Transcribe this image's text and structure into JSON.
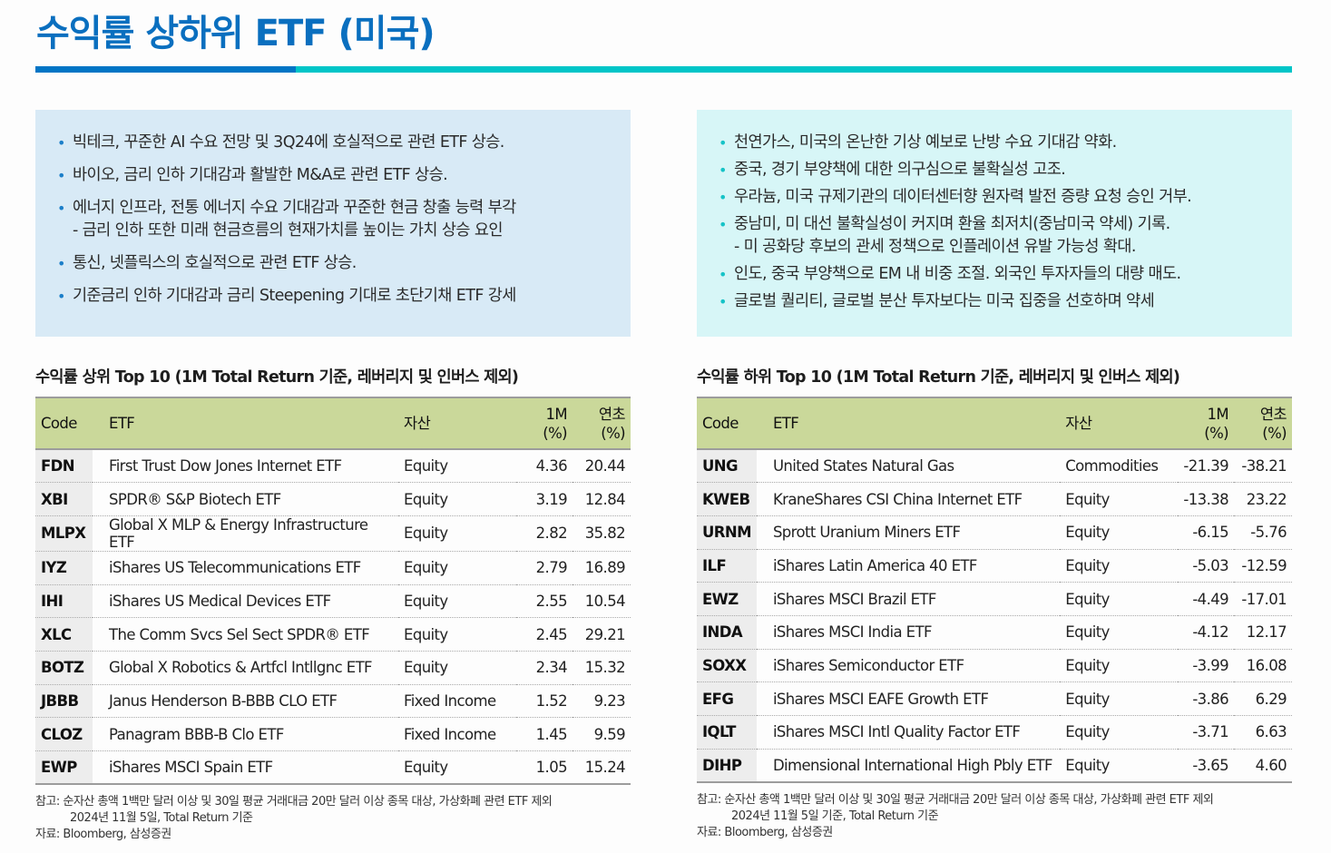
{
  "page": {
    "title": "수익률 상하위 ETF (미국)",
    "colors": {
      "title": "#0a6fbf",
      "rule_blue": "#0075c5",
      "rule_teal": "#00c5c8",
      "left_box": "#d8eaf6",
      "right_box": "#d7f6f7",
      "table_header": "#cad89a",
      "code_cell": "#ededed"
    }
  },
  "left": {
    "summary": [
      {
        "text": "빅테크, 꾸준한 AI 수요 전망 및 3Q24에 호실적으로 관련 ETF 상승."
      },
      {
        "text": "바이오, 금리 인하 기대감과 활발한 M&A로 관련 ETF 상승."
      },
      {
        "text": "에너지 인프라, 전통 에너지 수요 기대감과 꾸준한 현금 창출 능력 부각",
        "sub": "- 금리 인하 또한 미래 현금흐름의 현재가치를 높이는 가치 상승 요인"
      },
      {
        "text": "통신, 넷플릭스의 호실적으로 관련 ETF 상승."
      },
      {
        "text": "기준금리 인하 기대감과 금리 Steepening 기대로 초단기채 ETF 강세"
      }
    ],
    "table_title": "수익률 상위 Top 10 (1M Total Return 기준, 레버리지 및 인버스 제외)",
    "headers": {
      "code": "Code",
      "etf": "ETF",
      "asset": "자산",
      "m1_a": "1M",
      "m1_b": "(%)",
      "ytd_a": "연초",
      "ytd_b": "(%)"
    },
    "rows": [
      {
        "code": "FDN",
        "etf": "First Trust Dow Jones Internet ETF",
        "asset": "Equity",
        "m1": "4.36",
        "ytd": "20.44"
      },
      {
        "code": "XBI",
        "etf": "SPDR® S&P Biotech ETF",
        "asset": "Equity",
        "m1": "3.19",
        "ytd": "12.84"
      },
      {
        "code": "MLPX",
        "etf": "Global X MLP & Energy Infrastructure ETF",
        "asset": "Equity",
        "m1": "2.82",
        "ytd": "35.82"
      },
      {
        "code": "IYZ",
        "etf": "iShares US Telecommunications ETF",
        "asset": "Equity",
        "m1": "2.79",
        "ytd": "16.89"
      },
      {
        "code": "IHI",
        "etf": "iShares US Medical Devices ETF",
        "asset": "Equity",
        "m1": "2.55",
        "ytd": "10.54"
      },
      {
        "code": "XLC",
        "etf": "The Comm Svcs Sel Sect SPDR® ETF",
        "asset": "Equity",
        "m1": "2.45",
        "ytd": "29.21"
      },
      {
        "code": "BOTZ",
        "etf": "Global X Robotics & Artfcl Intllgnc ETF",
        "asset": "Equity",
        "m1": "2.34",
        "ytd": "15.32"
      },
      {
        "code": "JBBB",
        "etf": "Janus Henderson B-BBB CLO ETF",
        "asset": "Fixed Income",
        "m1": "1.52",
        "ytd": "9.23"
      },
      {
        "code": "CLOZ",
        "etf": "Panagram BBB-B Clo ETF",
        "asset": "Fixed Income",
        "m1": "1.45",
        "ytd": "9.59"
      },
      {
        "code": "EWP",
        "etf": "iShares MSCI Spain ETF",
        "asset": "Equity",
        "m1": "1.05",
        "ytd": "15.24"
      }
    ],
    "notes": {
      "line1": "참고: 순자산 총액 1백만 달러 이상 및 30일 평균 거래대금 20만 달러 이상 종목 대상, 가상화폐 관련 ETF 제외",
      "line2": "2024년 11월 5일, Total Return 기준",
      "line3": "자료: Bloomberg, 삼성증권"
    }
  },
  "right": {
    "summary": [
      {
        "text": "천연가스, 미국의 온난한 기상 예보로 난방 수요 기대감 약화."
      },
      {
        "text": "중국, 경기 부양책에 대한 의구심으로 불확실성 고조."
      },
      {
        "text": "우라늄, 미국 규제기관의 데이터센터향 원자력 발전 증량 요청 승인 거부."
      },
      {
        "text": "중남미, 미 대선 불확실성이 커지며 환율 최저치(중남미국 약세) 기록.",
        "sub": "- 미 공화당 후보의 관세 정책으로 인플레이션 유발 가능성 확대."
      },
      {
        "text": "인도, 중국 부양책으로 EM 내 비중 조절. 외국인 투자자들의 대량 매도."
      },
      {
        "text": "글로벌 퀄리티, 글로벌 분산 투자보다는 미국 집중을 선호하며 약세"
      }
    ],
    "table_title": "수익률 하위 Top 10 (1M Total Return 기준, 레버리지 및 인버스 제외)",
    "headers": {
      "code": "Code",
      "etf": "ETF",
      "asset": "자산",
      "m1_a": "1M",
      "m1_b": "(%)",
      "ytd_a": "연초",
      "ytd_b": "(%)"
    },
    "rows": [
      {
        "code": "UNG",
        "etf": "United States Natural Gas",
        "asset": "Commodities",
        "m1": "-21.39",
        "ytd": "-38.21"
      },
      {
        "code": "KWEB",
        "etf": "KraneShares CSI China Internet ETF",
        "asset": "Equity",
        "m1": "-13.38",
        "ytd": "23.22"
      },
      {
        "code": "URNM",
        "etf": "Sprott Uranium Miners ETF",
        "asset": "Equity",
        "m1": "-6.15",
        "ytd": "-5.76"
      },
      {
        "code": "ILF",
        "etf": "iShares Latin America 40 ETF",
        "asset": "Equity",
        "m1": "-5.03",
        "ytd": "-12.59"
      },
      {
        "code": "EWZ",
        "etf": "iShares MSCI Brazil ETF",
        "asset": "Equity",
        "m1": "-4.49",
        "ytd": "-17.01"
      },
      {
        "code": "INDA",
        "etf": "iShares MSCI India ETF",
        "asset": "Equity",
        "m1": "-4.12",
        "ytd": "12.17"
      },
      {
        "code": "SOXX",
        "etf": "iShares Semiconductor ETF",
        "asset": "Equity",
        "m1": "-3.99",
        "ytd": "16.08"
      },
      {
        "code": "EFG",
        "etf": "iShares MSCI EAFE Growth ETF",
        "asset": "Equity",
        "m1": "-3.86",
        "ytd": "6.29"
      },
      {
        "code": "IQLT",
        "etf": "iShares MSCI Intl Quality Factor ETF",
        "asset": "Equity",
        "m1": "-3.71",
        "ytd": "6.63"
      },
      {
        "code": "DIHP",
        "etf": "Dimensional International High Pbly ETF",
        "asset": "Equity",
        "m1": "-3.65",
        "ytd": "4.60"
      }
    ],
    "notes": {
      "line1": "참고: 순자산 총액 1백만 달러 이상 및 30일 평균 거래대금 20만 달러 이상 종목 대상, 가상화폐 관련 ETF 제외",
      "line2": "2024년 11월 5일 기준, Total Return 기준",
      "line3": "자료: Bloomberg, 삼성증권"
    }
  }
}
